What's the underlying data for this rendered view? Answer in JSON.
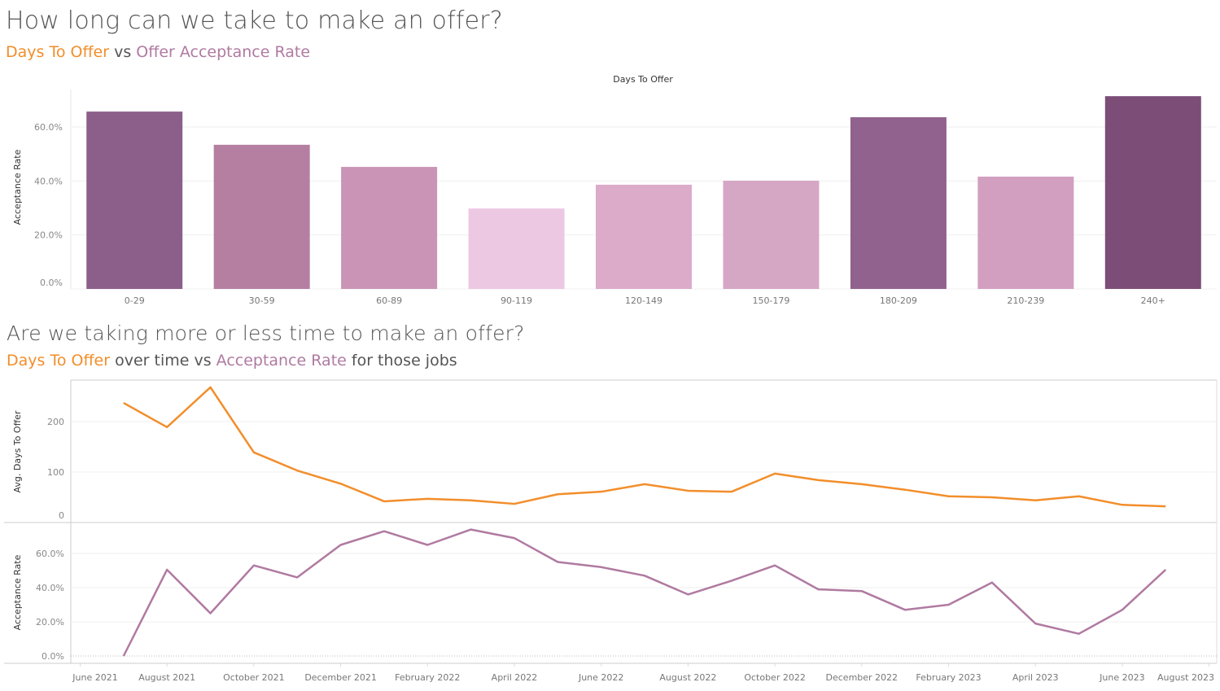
{
  "section1": {
    "title": "How long can we take to make an offer?",
    "subtitle_a": "Days To Offer",
    "subtitle_b": " vs ",
    "subtitle_c": "Offer Acceptance Rate"
  },
  "section2": {
    "title": "Are we taking more or less time to make an offer?",
    "subtitle_a": "Days To Offer",
    "subtitle_b": " over time vs ",
    "subtitle_c": "Acceptance Rate",
    "subtitle_d": " for those jobs"
  },
  "colors": {
    "orange": "#f28e2b",
    "purple": "#b07aa1"
  },
  "chart_data": [
    {
      "type": "bar",
      "title": "Days To Offer",
      "xlabel": "Days To Offer",
      "ylabel": "Acceptance Rate",
      "ylim": [
        0,
        75
      ],
      "yticks": [
        "0.0%",
        "20.0%",
        "40.0%",
        "60.0%"
      ],
      "ytick_values": [
        0,
        20,
        40,
        60
      ],
      "categories": [
        "0-29",
        "30-59",
        "60-89",
        "90-119",
        "120-149",
        "150-179",
        "180-209",
        "210-239",
        "240+"
      ],
      "values": [
        65.7,
        53.4,
        45.2,
        29.8,
        38.6,
        40.1,
        63.6,
        41.6,
        71.4
      ],
      "bar_colors": [
        "#8c5f8a",
        "#b47fa1",
        "#c994b5",
        "#edc8e3",
        "#dcabca",
        "#d6a7c5",
        "#90628d",
        "#d29fc0",
        "#7b4d77"
      ],
      "grid": true
    },
    {
      "type": "line",
      "x": [
        "2021-07",
        "2021-08",
        "2021-09",
        "2021-10",
        "2021-11",
        "2021-12",
        "2022-01",
        "2022-02",
        "2022-03",
        "2022-04",
        "2022-05",
        "2022-06",
        "2022-07",
        "2022-08",
        "2022-09",
        "2022-10",
        "2022-11",
        "2022-12",
        "2023-01",
        "2023-02",
        "2023-03",
        "2023-04",
        "2023-05",
        "2023-06",
        "2023-07"
      ],
      "xticks": [
        "June 2021",
        "August 2021",
        "October 2021",
        "December 2021",
        "February 2022",
        "April 2022",
        "June 2022",
        "August 2022",
        "October 2022",
        "December 2022",
        "February 2023",
        "April 2023",
        "June 2023",
        "August 2023"
      ],
      "series": [
        {
          "name": "Avg. Days To Offer",
          "ylabel": "Avg. Days To Offer",
          "yticks": [
            "0",
            "100",
            "200"
          ],
          "ytick_values": [
            0,
            100,
            200
          ],
          "ylim": [
            0,
            280
          ],
          "values": [
            237,
            189,
            268,
            139,
            103,
            77,
            42,
            47,
            44,
            37,
            56,
            61,
            76,
            63,
            61,
            97,
            84,
            76,
            65,
            52,
            50,
            44,
            52,
            35,
            32
          ]
        },
        {
          "name": "Acceptance Rate",
          "ylabel": "Acceptance Rate",
          "yticks": [
            "0.0%",
            "20.0%",
            "40.0%",
            "60.0%"
          ],
          "ytick_values": [
            0,
            20,
            40,
            60
          ],
          "ylim": [
            0,
            75
          ],
          "values": [
            0,
            50.5,
            25,
            53,
            46,
            65,
            73,
            65,
            74,
            69,
            55,
            52,
            47,
            36,
            44,
            53,
            39,
            38,
            27,
            30,
            43,
            19,
            13,
            27,
            50.5
          ]
        }
      ],
      "grid": true
    }
  ]
}
